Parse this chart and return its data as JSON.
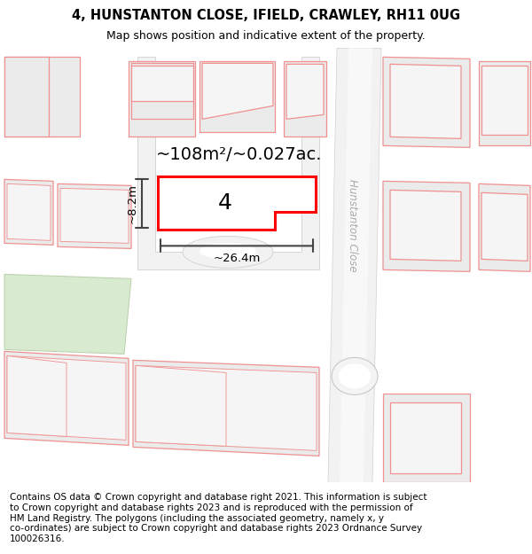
{
  "title": "4, HUNSTANTON CLOSE, IFIELD, CRAWLEY, RH11 0UG",
  "subtitle": "Map shows position and indicative extent of the property.",
  "footer": "Contains OS data © Crown copyright and database right 2021. This information is subject\nto Crown copyright and database rights 2023 and is reproduced with the permission of\nHM Land Registry. The polygons (including the associated geometry, namely x, y\nco-ordinates) are subject to Crown copyright and database rights 2023 Ordnance Survey\n100026316.",
  "area_label": "~108m²/~0.027ac.",
  "width_label": "~26.4m",
  "height_label": "~8.2m",
  "plot_number": "4",
  "map_bg": "#ffffff",
  "plot_fill": "#ffffff",
  "plot_border": "#ff0000",
  "building_fill": "#ebebeb",
  "building_stroke": "#f09090",
  "road_fill": "#f0f0f0",
  "road_stroke": "#c8c8c8",
  "dim_color": "#444444",
  "street_label": "Hunstanton Close",
  "title_fontsize": 10.5,
  "subtitle_fontsize": 9,
  "footer_fontsize": 7.5,
  "area_fontsize": 14,
  "plot_num_fontsize": 18,
  "dim_fontsize": 9.5
}
